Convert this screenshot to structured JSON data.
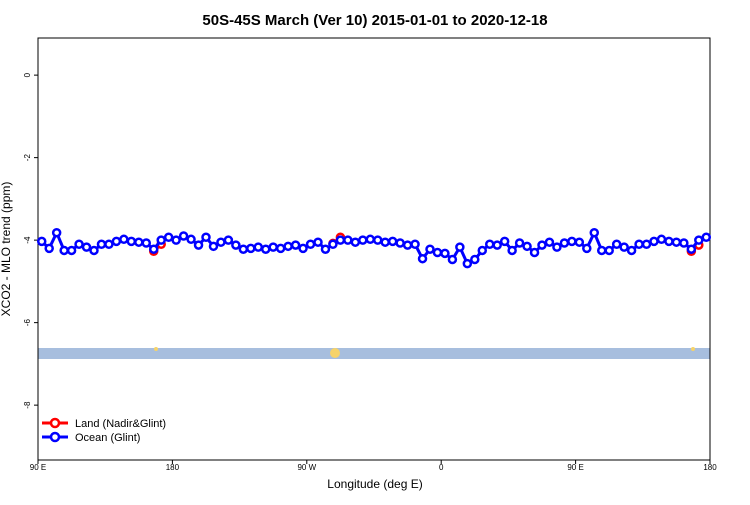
{
  "chart_data": {
    "type": "line",
    "title": "50S-45S March (Ver 10)   2015-01-01 to 2020-12-18",
    "xlabel": "Longitude (deg E)",
    "ylabel": "XCO2 - MLO trend (ppm)",
    "xlim": [
      90,
      540
    ],
    "ylim": [
      -9.33,
      0.9
    ],
    "xticks": [
      {
        "value": 90,
        "label": "90 E"
      },
      {
        "value": 180,
        "label": "180"
      },
      {
        "value": 270,
        "label": "90 W"
      },
      {
        "value": 360,
        "label": "0"
      },
      {
        "value": 450,
        "label": "90 E"
      },
      {
        "value": 540,
        "label": "180"
      }
    ],
    "yticks": [
      0,
      -2,
      -4,
      -6,
      -8
    ],
    "legend": "bottom-left",
    "series": [
      {
        "name": "Land (Nadir&Glint)",
        "color": "#ff0000",
        "x": [
          167.5,
          172.5,
          177.5,
          287.5,
          292.5,
          297.5,
          527.5,
          532.5
        ],
        "values": [
          -4.27,
          -4.1,
          null,
          -4.08,
          -3.93,
          null,
          -4.27,
          -4.12
        ]
      },
      {
        "name": "Ocean (Glint)",
        "color": "#0000ff",
        "x": [
          92.5,
          97.5,
          102.5,
          107.5,
          112.5,
          117.5,
          122.5,
          127.5,
          132.5,
          137.5,
          142.5,
          147.5,
          152.5,
          157.5,
          162.5,
          167.5,
          172.5,
          177.5,
          182.5,
          187.5,
          192.5,
          197.5,
          202.5,
          207.5,
          212.5,
          217.5,
          222.5,
          227.5,
          232.5,
          237.5,
          242.5,
          247.5,
          252.5,
          257.5,
          262.5,
          267.5,
          272.5,
          277.5,
          282.5,
          287.5,
          292.5,
          297.5,
          302.5,
          307.5,
          312.5,
          317.5,
          322.5,
          327.5,
          332.5,
          337.5,
          342.5,
          347.5,
          352.5,
          357.5,
          362.5,
          367.5,
          372.5,
          377.5,
          382.5,
          387.5,
          392.5,
          397.5,
          402.5,
          407.5,
          412.5,
          417.5,
          422.5,
          427.5,
          432.5,
          437.5,
          442.5,
          447.5,
          452.5,
          457.5,
          462.5,
          467.5,
          472.5,
          477.5,
          482.5,
          487.5,
          492.5,
          497.5,
          502.5,
          507.5,
          512.5,
          517.5,
          522.5,
          527.5,
          532.5,
          537.5
        ],
        "values": [
          -4.03,
          -4.2,
          -3.82,
          -4.25,
          -4.25,
          -4.1,
          -4.17,
          -4.25,
          -4.1,
          -4.1,
          -4.03,
          -3.98,
          -4.03,
          -4.05,
          -4.07,
          -4.22,
          -4.0,
          -3.93,
          -4.0,
          -3.9,
          -3.98,
          -4.12,
          -3.93,
          -4.15,
          -4.05,
          -4.0,
          -4.12,
          -4.22,
          -4.2,
          -4.17,
          -4.22,
          -4.17,
          -4.2,
          -4.15,
          -4.12,
          -4.2,
          -4.1,
          -4.05,
          -4.22,
          -4.1,
          -4.0,
          -4.0,
          -4.05,
          -4.0,
          -3.98,
          -4.0,
          -4.05,
          -4.03,
          -4.07,
          -4.12,
          -4.1,
          -4.45,
          -4.22,
          -4.3,
          -4.32,
          -4.47,
          -4.17,
          -4.57,
          -4.47,
          -4.25,
          -4.1,
          -4.12,
          -4.03,
          -4.25,
          -4.07,
          -4.15,
          -4.3,
          -4.12,
          -4.05,
          -4.17,
          -4.07,
          -4.03,
          -4.05,
          -4.2,
          -3.82,
          -4.25,
          -4.25,
          -4.1,
          -4.17,
          -4.25,
          -4.1,
          -4.1,
          -4.03,
          -3.98,
          -4.03,
          -4.05,
          -4.07,
          -4.22,
          -4.0,
          -3.93
        ]
      }
    ]
  }
}
